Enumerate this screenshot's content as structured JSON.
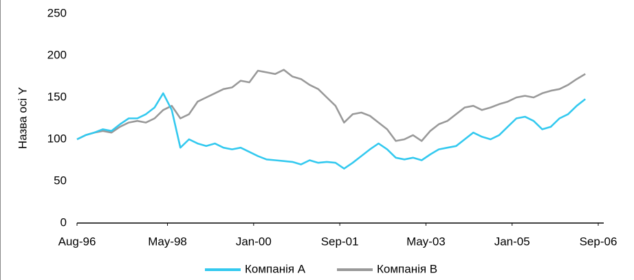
{
  "chart_data": {
    "type": "line",
    "y_label": "Назва осі Y",
    "x": [
      "1996-08",
      "1996-10",
      "1996-12",
      "1997-02",
      "1997-04",
      "1997-06",
      "1997-08",
      "1997-10",
      "1997-12",
      "1998-02",
      "1998-04",
      "1998-06",
      "1998-08",
      "1998-10",
      "1998-12",
      "1999-02",
      "1999-04",
      "1999-06",
      "1999-08",
      "1999-10",
      "1999-12",
      "2000-02",
      "2000-04",
      "2000-06",
      "2000-08",
      "2000-10",
      "2000-12",
      "2001-02",
      "2001-04",
      "2001-06",
      "2001-08",
      "2001-10",
      "2001-12",
      "2002-02",
      "2002-04",
      "2002-06",
      "2002-08",
      "2002-10",
      "2002-12",
      "2003-02",
      "2003-04",
      "2003-06",
      "2003-08",
      "2003-10",
      "2003-12",
      "2004-02",
      "2004-04",
      "2004-06",
      "2004-08",
      "2004-10",
      "2004-12",
      "2005-02",
      "2005-04",
      "2005-06",
      "2005-08",
      "2005-10",
      "2005-12",
      "2006-02",
      "2006-04",
      "2006-06"
    ],
    "series": [
      {
        "name": "Компанія A",
        "color": "#33c9ef",
        "values": [
          100,
          105,
          108,
          112,
          110,
          118,
          125,
          125,
          130,
          138,
          155,
          135,
          90,
          100,
          95,
          92,
          95,
          90,
          88,
          90,
          85,
          80,
          76,
          75,
          74,
          73,
          70,
          75,
          72,
          73,
          72,
          65,
          72,
          80,
          88,
          95,
          88,
          78,
          76,
          78,
          75,
          82,
          88,
          90,
          92,
          100,
          108,
          103,
          100,
          105,
          115,
          125,
          127,
          122,
          112,
          115,
          125,
          130,
          140,
          148
        ]
      },
      {
        "name": "Компанія B",
        "color": "#999999",
        "values": [
          100,
          105,
          108,
          110,
          108,
          115,
          120,
          122,
          120,
          125,
          135,
          140,
          125,
          130,
          145,
          150,
          155,
          160,
          162,
          170,
          168,
          182,
          180,
          178,
          183,
          175,
          172,
          165,
          160,
          150,
          140,
          120,
          130,
          132,
          128,
          120,
          112,
          98,
          100,
          105,
          98,
          110,
          118,
          122,
          130,
          138,
          140,
          135,
          138,
          142,
          145,
          150,
          152,
          150,
          155,
          158,
          160,
          165,
          172,
          178
        ]
      }
    ],
    "xlim": [
      "1996-08",
      "2006-09"
    ],
    "xticks": [
      {
        "value": "1996-08",
        "label": "Aug-96"
      },
      {
        "value": "1998-05",
        "label": "May-98"
      },
      {
        "value": "2000-01",
        "label": "Jan-00"
      },
      {
        "value": "2001-09",
        "label": "Sep-01"
      },
      {
        "value": "2003-05",
        "label": "May-03"
      },
      {
        "value": "2005-01",
        "label": "Jan-05"
      },
      {
        "value": "2006-09",
        "label": "Sep-06"
      }
    ],
    "ylim": [
      0,
      250
    ],
    "yticks": [
      0,
      50,
      100,
      150,
      200,
      250
    ],
    "grid": false,
    "legend": "bottom"
  }
}
